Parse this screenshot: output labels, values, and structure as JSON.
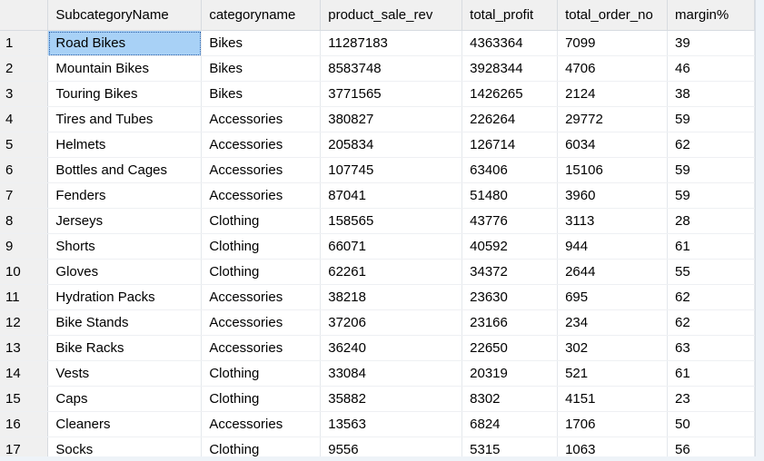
{
  "results_grid": {
    "columns": [
      "SubcategoryName",
      "categoryname",
      "product_sale_rev",
      "total_profit",
      "total_order_no",
      "margin%"
    ],
    "selected_cell": {
      "row": 0,
      "col": 0
    },
    "rows": [
      {
        "num": "1",
        "cells": [
          "Road Bikes",
          "Bikes",
          "11287183",
          "4363364",
          "7099",
          "39"
        ]
      },
      {
        "num": "2",
        "cells": [
          "Mountain Bikes",
          "Bikes",
          "8583748",
          "3928344",
          "4706",
          "46"
        ]
      },
      {
        "num": "3",
        "cells": [
          "Touring Bikes",
          "Bikes",
          "3771565",
          "1426265",
          "2124",
          "38"
        ]
      },
      {
        "num": "4",
        "cells": [
          "Tires and Tubes",
          "Accessories",
          "380827",
          "226264",
          "29772",
          "59"
        ]
      },
      {
        "num": "5",
        "cells": [
          "Helmets",
          "Accessories",
          "205834",
          "126714",
          "6034",
          "62"
        ]
      },
      {
        "num": "6",
        "cells": [
          "Bottles and Cages",
          "Accessories",
          "107745",
          "63406",
          "15106",
          "59"
        ]
      },
      {
        "num": "7",
        "cells": [
          "Fenders",
          "Accessories",
          "87041",
          "51480",
          "3960",
          "59"
        ]
      },
      {
        "num": "8",
        "cells": [
          "Jerseys",
          "Clothing",
          "158565",
          "43776",
          "3113",
          "28"
        ]
      },
      {
        "num": "9",
        "cells": [
          "Shorts",
          "Clothing",
          "66071",
          "40592",
          "944",
          "61"
        ]
      },
      {
        "num": "10",
        "cells": [
          "Gloves",
          "Clothing",
          "62261",
          "34372",
          "2644",
          "55"
        ]
      },
      {
        "num": "11",
        "cells": [
          "Hydration Packs",
          "Accessories",
          "38218",
          "23630",
          "695",
          "62"
        ]
      },
      {
        "num": "12",
        "cells": [
          "Bike Stands",
          "Accessories",
          "37206",
          "23166",
          "234",
          "62"
        ]
      },
      {
        "num": "13",
        "cells": [
          "Bike Racks",
          "Accessories",
          "36240",
          "22650",
          "302",
          "63"
        ]
      },
      {
        "num": "14",
        "cells": [
          "Vests",
          "Clothing",
          "33084",
          "20319",
          "521",
          "61"
        ]
      },
      {
        "num": "15",
        "cells": [
          "Caps",
          "Clothing",
          "35882",
          "8302",
          "4151",
          "23"
        ]
      },
      {
        "num": "16",
        "cells": [
          "Cleaners",
          "Accessories",
          "13563",
          "6824",
          "1706",
          "50"
        ]
      },
      {
        "num": "17",
        "cells": [
          "Socks",
          "Clothing",
          "9556",
          "5315",
          "1063",
          "56"
        ]
      }
    ]
  }
}
